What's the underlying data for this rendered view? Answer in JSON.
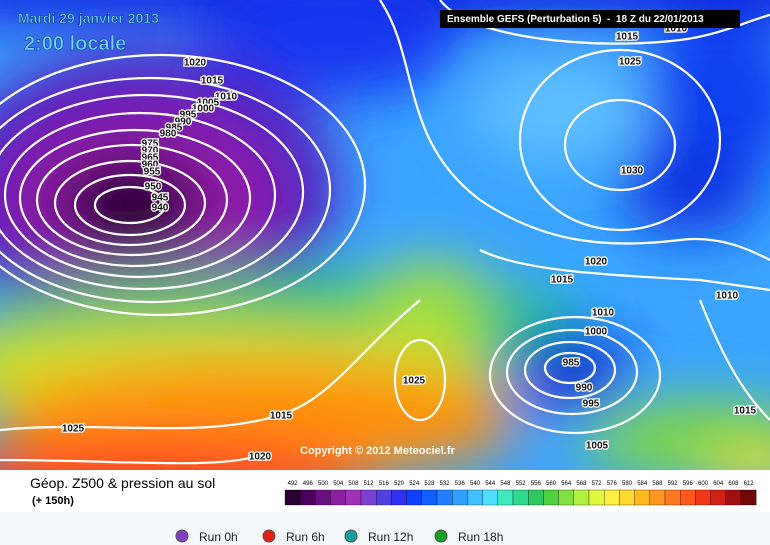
{
  "header": {
    "date": "Mardi 29 janvier 2013",
    "time": "2:00 locale",
    "model": "Ensemble GEFS (Perturbation 5)  -  18 Z du 22/01/2013"
  },
  "isobar_labels": [
    "1020",
    "1015",
    "1010",
    "1005",
    "1000",
    "995",
    "990",
    "985",
    "980",
    "975",
    "970",
    "965",
    "960",
    "955",
    "950",
    "945",
    "940",
    "1015",
    "1025",
    "1030",
    "1020",
    "1015",
    "1010",
    "1000",
    "985",
    "990",
    "995",
    "1005",
    "1025",
    "1015",
    "1025",
    "1020",
    "1010",
    "1015",
    "1010"
  ],
  "copyright": "Copyright © 2012 Meteociel.fr",
  "legend": {
    "title": "Géop. Z500 & pression au sol",
    "subtitle": "(+ 150h)",
    "scale": [
      "492",
      "496",
      "500",
      "504",
      "508",
      "512",
      "516",
      "520",
      "524",
      "528",
      "532",
      "536",
      "540",
      "544",
      "548",
      "552",
      "556",
      "560",
      "564",
      "568",
      "572",
      "576",
      "580",
      "584",
      "588",
      "592",
      "596",
      "600",
      "604",
      "608",
      "612"
    ]
  },
  "runs": [
    "Run 0h",
    "Run 6h",
    "Run 12h",
    "Run 18h"
  ]
}
